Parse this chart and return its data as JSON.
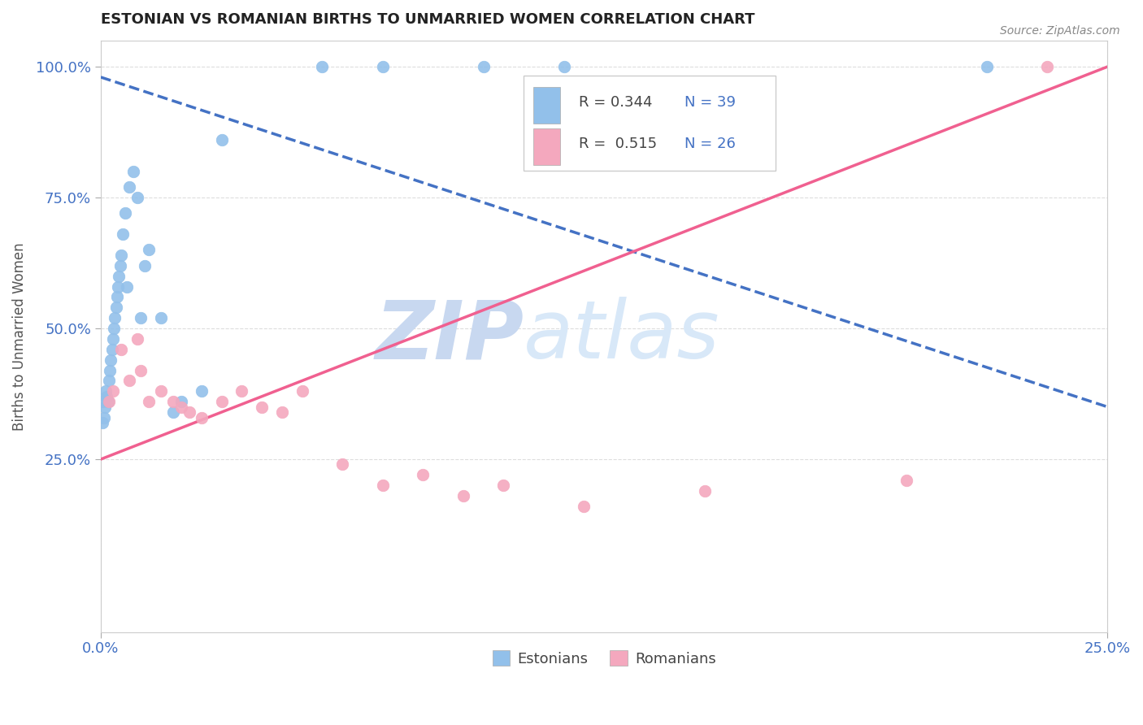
{
  "title": "ESTONIAN VS ROMANIAN BIRTHS TO UNMARRIED WOMEN CORRELATION CHART",
  "source": "Source: ZipAtlas.com",
  "ylabel": "Births to Unmarried Women",
  "R_estonian": 0.344,
  "N_estonian": 39,
  "R_romanian": 0.515,
  "N_romanian": 26,
  "color_estonian": "#92C0EA",
  "color_romanian": "#F4A8BE",
  "line_color_estonian": "#4472C4",
  "line_color_romanian": "#F06090",
  "watermark_zip": "ZIP",
  "watermark_atlas": "atlas",
  "watermark_color": "#C8D8F0",
  "xmin": 0.0,
  "xmax": 25.0,
  "ymin": 0.0,
  "ymax": 100.0,
  "yticks": [
    25.0,
    50.0,
    75.0,
    100.0
  ],
  "xticks": [
    0.0,
    25.0
  ],
  "estonian_x": [
    0.05,
    0.05,
    0.08,
    0.1,
    0.12,
    0.15,
    0.18,
    0.2,
    0.22,
    0.25,
    0.28,
    0.3,
    0.32,
    0.35,
    0.38,
    0.4,
    0.42,
    0.45,
    0.48,
    0.5,
    0.55,
    0.6,
    0.65,
    0.7,
    0.8,
    0.9,
    1.0,
    1.1,
    1.2,
    1.5,
    1.8,
    2.0,
    2.5,
    3.0,
    5.5,
    7.0,
    9.5,
    11.5,
    22.0
  ],
  "estonian_y": [
    32.0,
    36.0,
    33.0,
    35.0,
    38.0,
    37.0,
    36.0,
    40.0,
    42.0,
    44.0,
    46.0,
    48.0,
    50.0,
    52.0,
    54.0,
    56.0,
    58.0,
    60.0,
    62.0,
    64.0,
    68.0,
    72.0,
    58.0,
    77.0,
    80.0,
    75.0,
    52.0,
    62.0,
    65.0,
    52.0,
    34.0,
    36.0,
    38.0,
    86.0,
    100.0,
    100.0,
    100.0,
    100.0,
    100.0
  ],
  "romanian_x": [
    0.2,
    0.3,
    0.5,
    0.7,
    0.9,
    1.0,
    1.2,
    1.5,
    1.8,
    2.0,
    2.2,
    2.5,
    3.0,
    3.5,
    4.0,
    4.5,
    5.0,
    6.0,
    7.0,
    8.0,
    9.0,
    10.0,
    12.0,
    15.0,
    20.0,
    23.5
  ],
  "romanian_y": [
    36.0,
    38.0,
    46.0,
    40.0,
    48.0,
    42.0,
    36.0,
    38.0,
    36.0,
    35.0,
    34.0,
    33.0,
    36.0,
    38.0,
    35.0,
    34.0,
    38.0,
    24.0,
    20.0,
    22.0,
    18.0,
    20.0,
    16.0,
    19.0,
    21.0,
    100.0
  ],
  "line_estonian_x0": 0.0,
  "line_estonian_y0": 98.0,
  "line_estonian_x1": 25.0,
  "line_estonian_y1": 35.0,
  "line_romanian_x0": 0.0,
  "line_romanian_y0": 25.0,
  "line_romanian_x1": 25.0,
  "line_romanian_y1": 100.0
}
